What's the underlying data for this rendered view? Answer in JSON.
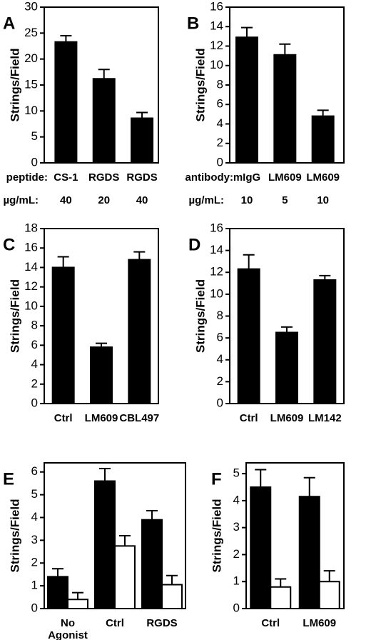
{
  "chart_data": [
    {
      "type": "bar",
      "panel": "A",
      "ylabel": "Strings/Field",
      "categories": [
        "CS-1",
        "RGDS",
        "RGDS"
      ],
      "category_prefix": "peptide:",
      "dose_prefix": "µg/mL:",
      "doses": [
        "40",
        "20",
        "40"
      ],
      "series": [
        {
          "color": "#000000",
          "values": [
            23.3,
            16.2,
            8.6
          ],
          "errors": [
            1.2,
            1.8,
            1.1
          ]
        }
      ],
      "ylim": [
        0,
        30
      ],
      "yticks": [
        0,
        5,
        10,
        15,
        20,
        25,
        30
      ]
    },
    {
      "type": "bar",
      "panel": "B",
      "ylabel": "Strings/Field",
      "categories": [
        "mIgG",
        "LM609",
        "LM609"
      ],
      "category_prefix": "antibody:",
      "dose_prefix": "µg/mL:",
      "doses": [
        "10",
        "5",
        "10"
      ],
      "series": [
        {
          "color": "#000000",
          "values": [
            12.9,
            11.1,
            4.8
          ],
          "errors": [
            1.0,
            1.1,
            0.6
          ]
        }
      ],
      "ylim": [
        0,
        16
      ],
      "yticks": [
        0,
        2,
        4,
        6,
        8,
        10,
        12,
        14,
        16
      ]
    },
    {
      "type": "bar",
      "panel": "C",
      "ylabel": "Strings/Field",
      "categories": [
        "Ctrl",
        "LM609",
        "CBL497"
      ],
      "series": [
        {
          "color": "#000000",
          "values": [
            14.0,
            5.8,
            14.8
          ],
          "errors": [
            1.1,
            0.4,
            0.8
          ]
        }
      ],
      "ylim": [
        0,
        18
      ],
      "yticks": [
        0,
        2,
        4,
        6,
        8,
        10,
        12,
        14,
        16,
        18
      ]
    },
    {
      "type": "bar",
      "panel": "D",
      "ylabel": "Strings/Field",
      "categories": [
        "Ctrl",
        "LM609",
        "LM142"
      ],
      "series": [
        {
          "color": "#000000",
          "values": [
            12.3,
            6.5,
            11.3
          ],
          "errors": [
            1.3,
            0.5,
            0.4
          ]
        }
      ],
      "ylim": [
        0,
        16
      ],
      "yticks": [
        0,
        2,
        4,
        6,
        8,
        10,
        12,
        14,
        16
      ]
    },
    {
      "type": "bar",
      "panel": "E",
      "ylabel": "Strings/Field",
      "categories": [
        "No Agonist",
        "Ctrl",
        "RGDS"
      ],
      "series": [
        {
          "color": "#000000",
          "values": [
            1.4,
            5.6,
            3.9
          ],
          "errors": [
            0.35,
            0.55,
            0.4
          ]
        },
        {
          "color": "#ffffff",
          "values": [
            0.4,
            2.75,
            1.05
          ],
          "errors": [
            0.3,
            0.45,
            0.4
          ]
        }
      ],
      "ylim": [
        0,
        6.4
      ],
      "yticks": [
        0,
        1,
        2,
        3,
        4,
        5,
        6
      ]
    },
    {
      "type": "bar",
      "panel": "F",
      "ylabel": "Strings/Field",
      "categories": [
        "Ctrl",
        "LM609"
      ],
      "series": [
        {
          "color": "#000000",
          "values": [
            4.5,
            4.15
          ],
          "errors": [
            0.65,
            0.7
          ]
        },
        {
          "color": "#ffffff",
          "values": [
            0.8,
            1.0
          ],
          "errors": [
            0.3,
            0.4
          ]
        }
      ],
      "ylim": [
        0,
        5.4
      ],
      "yticks": [
        0,
        1,
        2,
        3,
        4,
        5
      ]
    }
  ]
}
